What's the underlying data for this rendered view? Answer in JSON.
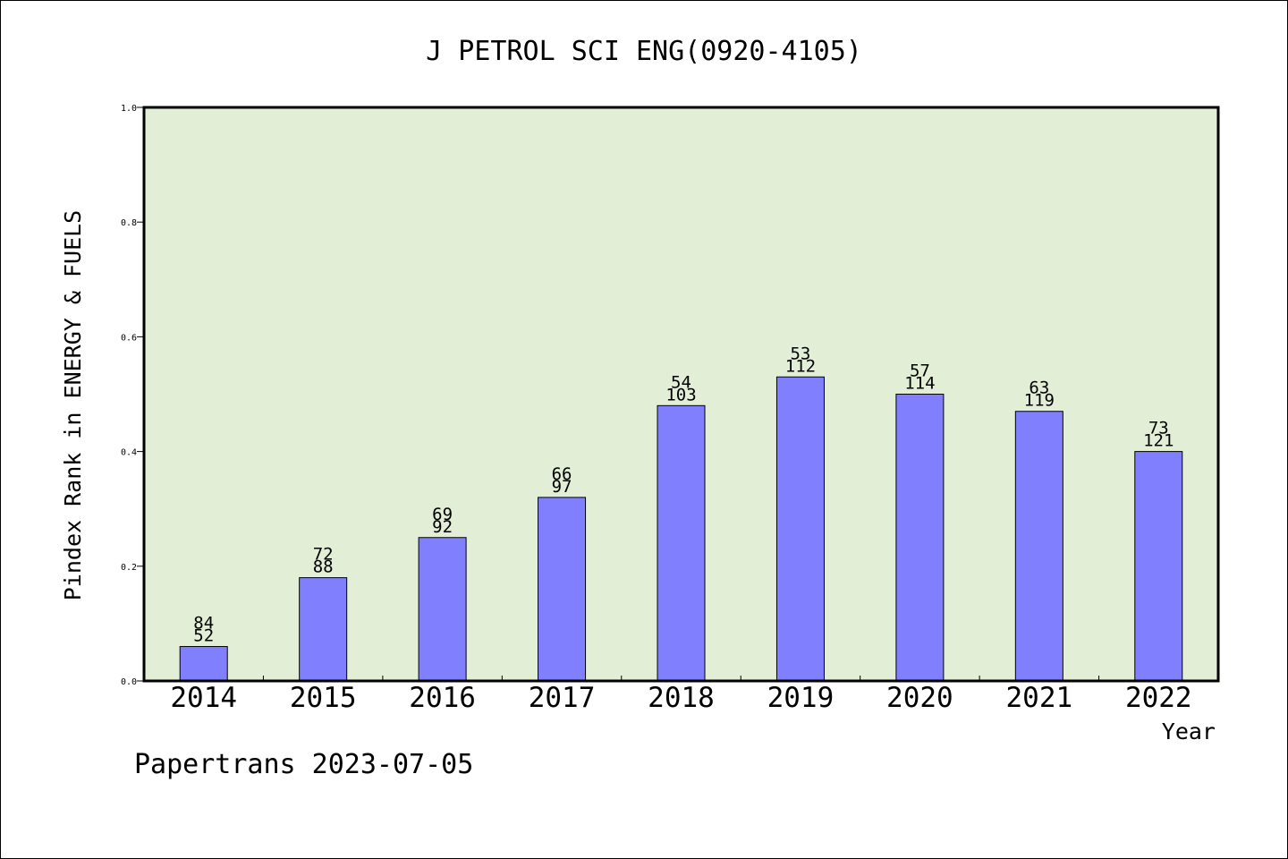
{
  "chart_data": {
    "type": "bar",
    "title": "J PETROL SCI ENG(0920-4105)",
    "xlabel": "Year",
    "ylabel": "Pindex Rank in ENERGY & FUELS",
    "ylim": [
      0,
      1.0
    ],
    "yticks": [
      "0.0",
      "0.2",
      "0.4",
      "0.6",
      "0.8",
      "1.0"
    ],
    "categories": [
      "2014",
      "2015",
      "2016",
      "2017",
      "2018",
      "2019",
      "2020",
      "2021",
      "2022"
    ],
    "values": [
      0.06,
      0.18,
      0.25,
      0.32,
      0.48,
      0.53,
      0.5,
      0.47,
      0.4
    ],
    "labels_top": [
      "84",
      "72",
      "69",
      "66",
      "54",
      "53",
      "57",
      "63",
      "73"
    ],
    "labels_bottom": [
      "52",
      "88",
      "92",
      "97",
      "103",
      "112",
      "114",
      "119",
      "121"
    ],
    "grid": false,
    "colors": {
      "bar": "#8080ff",
      "plot_background": "#e2efd6"
    }
  },
  "footer": {
    "text": "Papertrans 2023-07-05"
  }
}
